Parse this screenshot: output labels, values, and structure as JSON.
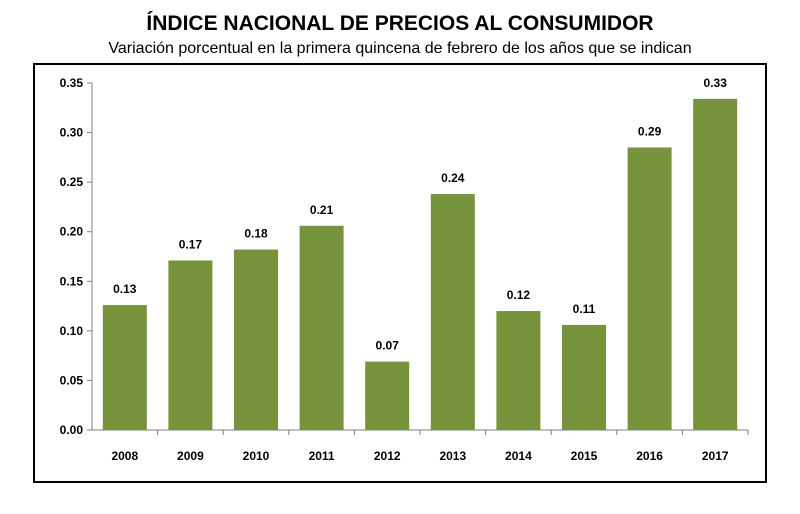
{
  "title": "ÍNDICE NACIONAL DE PRECIOS AL CONSUMIDOR",
  "subtitle": "Variación porcentual en la primera quincena de febrero de los años que se indican",
  "colors": {
    "bar": "#77933c",
    "axis": "#808080",
    "frame": "#000000"
  },
  "chart_data": {
    "type": "bar",
    "title": "ÍNDICE NACIONAL DE PRECIOS AL CONSUMIDOR",
    "subtitle": "Variación porcentual en la primera quincena de febrero de los años que se indican",
    "xlabel": "",
    "ylabel": "",
    "categories": [
      "2008",
      "2009",
      "2010",
      "2011",
      "2012",
      "2013",
      "2014",
      "2015",
      "2016",
      "2017"
    ],
    "values": [
      0.126,
      0.171,
      0.182,
      0.206,
      0.069,
      0.238,
      0.12,
      0.106,
      0.285,
      0.334
    ],
    "data_labels": [
      "0.13",
      "0.17",
      "0.18",
      "0.21",
      "0.07",
      "0.24",
      "0.12",
      "0.11",
      "0.29",
      "0.33"
    ],
    "ylim": [
      0,
      0.35
    ],
    "y_ticks": [
      "0.00",
      "0.05",
      "0.10",
      "0.15",
      "0.20",
      "0.25",
      "0.30",
      "0.35"
    ],
    "grid": false,
    "legend": "none"
  }
}
